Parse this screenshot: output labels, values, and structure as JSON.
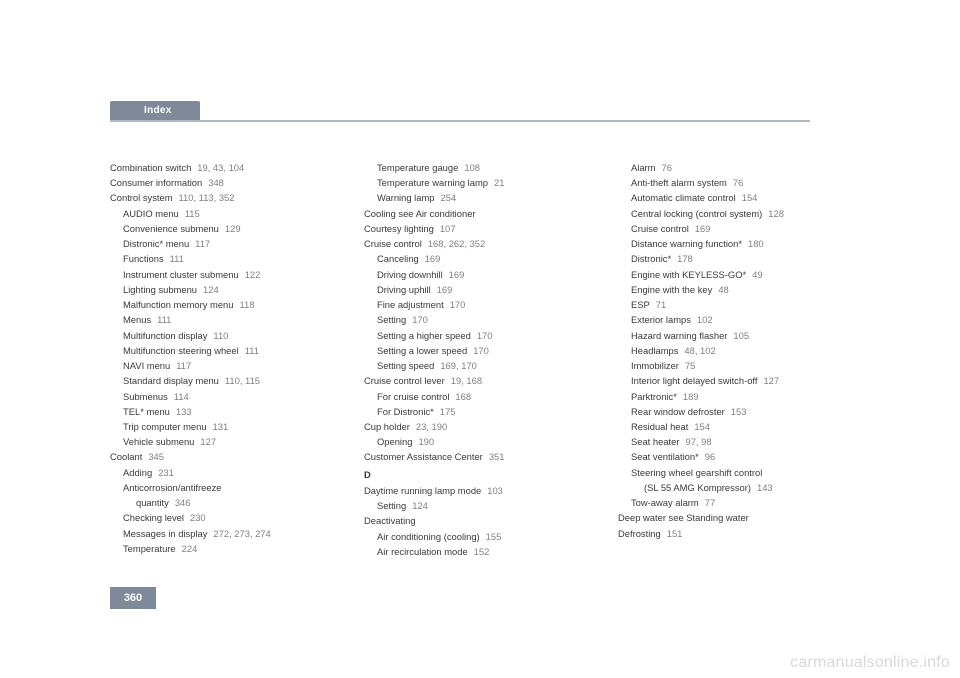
{
  "header": {
    "tab_label": "Index"
  },
  "page_number": "360",
  "watermark": "carmanualsonline.info",
  "columns": [
    [
      {
        "t": "Combination switch",
        "p": "19, 43, 104",
        "i": 0
      },
      {
        "t": "Consumer information",
        "p": "348",
        "i": 0
      },
      {
        "t": "Control system",
        "p": "110, 113, 352",
        "i": 0
      },
      {
        "t": "AUDIO menu",
        "p": "115",
        "i": 1
      },
      {
        "t": "Convenience submenu",
        "p": "129",
        "i": 1
      },
      {
        "t": "Distronic* menu",
        "p": "117",
        "i": 1
      },
      {
        "t": "Functions",
        "p": "111",
        "i": 1
      },
      {
        "t": "Instrument cluster submenu",
        "p": "122",
        "i": 1
      },
      {
        "t": "Lighting submenu",
        "p": "124",
        "i": 1
      },
      {
        "t": "Malfunction memory menu",
        "p": "118",
        "i": 1
      },
      {
        "t": "Menus",
        "p": "111",
        "i": 1
      },
      {
        "t": "Multifunction display",
        "p": "110",
        "i": 1
      },
      {
        "t": "Multifunction steering wheel",
        "p": "111",
        "i": 1
      },
      {
        "t": "NAVI menu",
        "p": "117",
        "i": 1
      },
      {
        "t": "Standard display menu",
        "p": "110, 115",
        "i": 1
      },
      {
        "t": "Submenus",
        "p": "114",
        "i": 1
      },
      {
        "t": "TEL* menu",
        "p": "133",
        "i": 1
      },
      {
        "t": "Trip computer menu",
        "p": "131",
        "i": 1
      },
      {
        "t": "Vehicle submenu",
        "p": "127",
        "i": 1
      },
      {
        "t": "Coolant",
        "p": "345",
        "i": 0
      },
      {
        "t": "Adding",
        "p": "231",
        "i": 1
      },
      {
        "t": "Anticorrosion/antifreeze",
        "p": "",
        "i": 1
      },
      {
        "t": "quantity",
        "p": "346",
        "i": 2
      },
      {
        "t": "Checking level",
        "p": "230",
        "i": 1
      },
      {
        "t": "Messages in display",
        "p": "272, 273, 274",
        "i": 1
      },
      {
        "t": "Temperature",
        "p": "224",
        "i": 1
      }
    ],
    [
      {
        "t": "Temperature gauge",
        "p": "108",
        "i": 1
      },
      {
        "t": "Temperature warning lamp",
        "p": "21",
        "i": 1
      },
      {
        "t": "Warning lamp",
        "p": "254",
        "i": 1
      },
      {
        "t": "Cooling see Air conditioner",
        "p": "",
        "i": 0
      },
      {
        "t": "Courtesy lighting",
        "p": "107",
        "i": 0
      },
      {
        "t": "Cruise control",
        "p": "168, 262, 352",
        "i": 0
      },
      {
        "t": "Canceling",
        "p": "169",
        "i": 1
      },
      {
        "t": "Driving downhill",
        "p": "169",
        "i": 1
      },
      {
        "t": "Driving uphill",
        "p": "169",
        "i": 1
      },
      {
        "t": "Fine adjustment",
        "p": "170",
        "i": 1
      },
      {
        "t": "Setting",
        "p": "170",
        "i": 1
      },
      {
        "t": "Setting a higher speed",
        "p": "170",
        "i": 1
      },
      {
        "t": "Setting a lower speed",
        "p": "170",
        "i": 1
      },
      {
        "t": "Setting speed",
        "p": "169, 170",
        "i": 1
      },
      {
        "t": "Cruise control lever",
        "p": "19, 168",
        "i": 0
      },
      {
        "t": "For cruise control",
        "p": "168",
        "i": 1
      },
      {
        "t": "For Distronic*",
        "p": "175",
        "i": 1
      },
      {
        "t": "Cup holder",
        "p": "23, 190",
        "i": 0
      },
      {
        "t": "Opening",
        "p": "190",
        "i": 1
      },
      {
        "t": "Customer Assistance Center",
        "p": "351",
        "i": 0
      },
      {
        "letter": "D"
      },
      {
        "t": "Daytime running lamp mode",
        "p": "103",
        "i": 0
      },
      {
        "t": "Setting",
        "p": "124",
        "i": 1
      },
      {
        "t": "Deactivating",
        "p": "",
        "i": 0
      },
      {
        "t": "Air conditioning (cooling)",
        "p": "155",
        "i": 1
      },
      {
        "t": "Air recirculation mode",
        "p": "152",
        "i": 1
      }
    ],
    [
      {
        "t": "Alarm",
        "p": "76",
        "i": 1
      },
      {
        "t": "Anti-theft alarm system",
        "p": "76",
        "i": 1
      },
      {
        "t": "Automatic climate control",
        "p": "154",
        "i": 1
      },
      {
        "t": "Central locking (control system)",
        "p": "128",
        "i": 1
      },
      {
        "t": "Cruise control",
        "p": "169",
        "i": 1
      },
      {
        "t": "Distance warning function*",
        "p": "180",
        "i": 1
      },
      {
        "t": "Distronic*",
        "p": "178",
        "i": 1
      },
      {
        "t": "Engine with KEYLESS-GO*",
        "p": "49",
        "i": 1
      },
      {
        "t": "Engine with the key",
        "p": "48",
        "i": 1
      },
      {
        "t": "ESP",
        "p": "71",
        "i": 1
      },
      {
        "t": "Exterior lamps",
        "p": "102",
        "i": 1
      },
      {
        "t": "Hazard warning flasher",
        "p": "105",
        "i": 1
      },
      {
        "t": "Headlamps",
        "p": "48, 102",
        "i": 1
      },
      {
        "t": "Immobilizer",
        "p": "75",
        "i": 1
      },
      {
        "t": "Interior light delayed switch-off",
        "p": "127",
        "i": 1
      },
      {
        "t": "Parktronic*",
        "p": "189",
        "i": 1
      },
      {
        "t": "Rear window defroster",
        "p": "153",
        "i": 1
      },
      {
        "t": "Residual heat",
        "p": "154",
        "i": 1
      },
      {
        "t": "Seat heater",
        "p": "97, 98",
        "i": 1
      },
      {
        "t": "Seat ventilation*",
        "p": "96",
        "i": 1
      },
      {
        "t": "Steering wheel gearshift control",
        "p": "",
        "i": 1
      },
      {
        "t": "(SL 55 AMG Kompressor)",
        "p": "143",
        "i": 2
      },
      {
        "t": "Tow-away alarm",
        "p": "77",
        "i": 1
      },
      {
        "t": "Deep water see Standing water",
        "p": "",
        "i": 0
      },
      {
        "t": "Defrosting",
        "p": "151",
        "i": 0
      }
    ]
  ]
}
